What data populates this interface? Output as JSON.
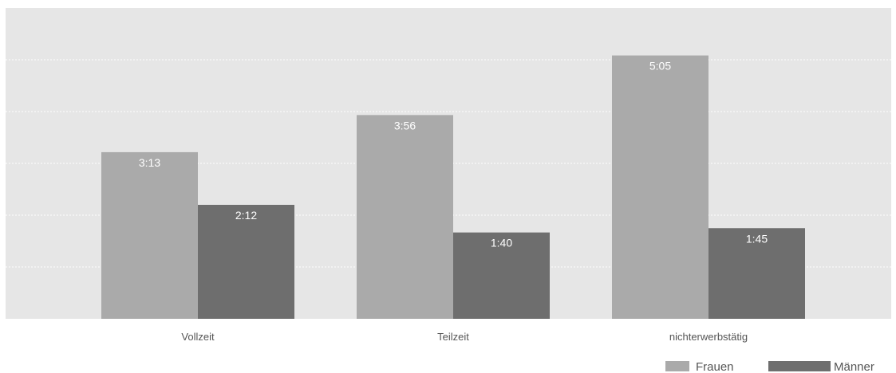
{
  "chart_data": {
    "type": "bar",
    "title": "",
    "xlabel": "",
    "ylabel": "",
    "categories": [
      "Vollzeit",
      "Teilzeit",
      "nichterwerbstätig"
    ],
    "series": [
      {
        "name": "Frauen",
        "values": [
          193,
          236,
          305
        ],
        "labels": [
          "3:13",
          "3:56",
          "5:05"
        ],
        "color": "#aaaaaa"
      },
      {
        "name": "Männer",
        "values": [
          132,
          100,
          105
        ],
        "labels": [
          "2:12",
          "1:40",
          "1:45"
        ],
        "color": "#6e6e6e"
      }
    ],
    "value_unit": "minutes (h:mm)",
    "ylim": [
      0,
      360
    ],
    "grid": true,
    "legend_position": "bottom-right",
    "background_color": "#e6e6e6"
  }
}
